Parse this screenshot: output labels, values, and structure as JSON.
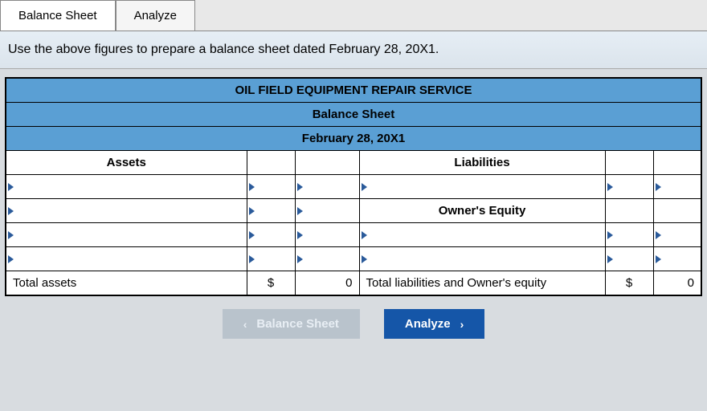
{
  "tabs": {
    "balance_sheet": "Balance Sheet",
    "analyze": "Analyze"
  },
  "instruction": "Use the above figures to prepare a balance sheet dated February 28, 20X1.",
  "sheet": {
    "company": "OIL FIELD EQUIPMENT REPAIR SERVICE",
    "title": "Balance Sheet",
    "date": "February 28, 20X1",
    "assets_header": "Assets",
    "liabilities_header": "Liabilities",
    "owners_equity_header": "Owner's Equity",
    "total_assets_label": "Total assets",
    "total_liab_equity_label": "Total liabilities and Owner's equity",
    "currency": "$",
    "total_assets_value": "0",
    "total_liab_equity_value": "0"
  },
  "nav": {
    "prev_label": "Balance Sheet",
    "next_label": "Analyze"
  },
  "colors": {
    "header_blue": "#5a9fd4",
    "button_blue": "#1556a8",
    "button_grey": "#b9c3cc",
    "triangle": "#2a5a9a"
  }
}
